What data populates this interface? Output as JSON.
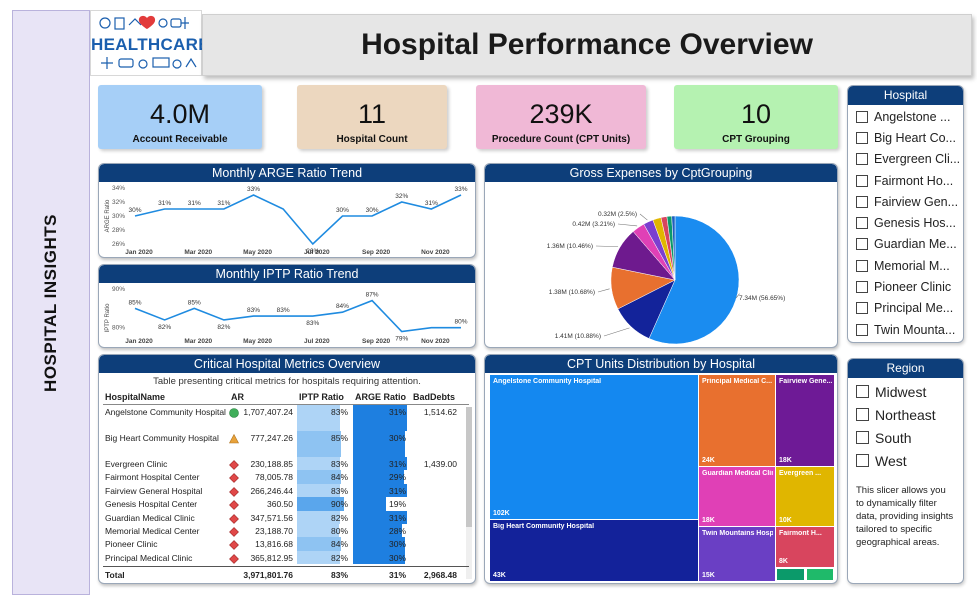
{
  "sidebar": {
    "label": "HOSPITAL INSIGHTS"
  },
  "logo": {
    "text": "HEALTHCARE"
  },
  "title": "Hospital Performance Overview",
  "kpis": [
    {
      "value": "4.0M",
      "label": "Account Receivable",
      "color": "#a6cff7"
    },
    {
      "value": "11",
      "label": "Hospital Count",
      "color": "#ecd7bf"
    },
    {
      "value": "239K",
      "label": "Procedure Count (CPT Units)",
      "color": "#f0b8d6"
    },
    {
      "value": "10",
      "label": "CPT Grouping",
      "color": "#b5f2b1"
    }
  ],
  "colors": {
    "header": "#0d3e7a",
    "line": "#1f8be0",
    "iptp_fill": "#a8d0f4",
    "arge_fill": "#1e7fe0"
  },
  "argeChart": {
    "title": "Monthly ARGE Ratio Trend",
    "ylabel": "ARGE Ratio",
    "yticks": [
      "34%",
      "32%",
      "30%",
      "28%",
      "26%"
    ],
    "xticks": [
      "Jan 2020",
      "Mar 2020",
      "May 2020",
      "Jul 2020",
      "Sep 2020",
      "Nov 2020"
    ]
  },
  "iptpChart": {
    "title": "Monthly IPTP Ratio Trend",
    "ylabel": "IPTP Ratio",
    "yticks": [
      "90%",
      "80%"
    ],
    "xticks": [
      "Jan 2020",
      "Mar 2020",
      "May 2020",
      "Jul 2020",
      "Sep 2020",
      "Nov 2020"
    ]
  },
  "pieChart": {
    "title": "Gross Expenses by CptGrouping"
  },
  "table": {
    "title": "Critical Hospital Metrics Overview",
    "subtitle": "Table presenting critical metrics for hospitals requiring attention.",
    "headers": [
      "HospitalName",
      "AR",
      "IPTP Ratio",
      "ARGE Ratio",
      "BadDebts"
    ],
    "rows": [
      {
        "name": "Angelstone Community Hospital",
        "ar": "1,707,407.24",
        "iptp": "83%",
        "arge": "31%",
        "bad": "1,514.62",
        "ind": "circle",
        "iptpv": 83,
        "argev": 31
      },
      {
        "name": "Big Heart Community Hospital",
        "ar": "777,247.26",
        "iptp": "85%",
        "arge": "30%",
        "bad": "",
        "ind": "triangle",
        "iptpv": 85,
        "argev": 30
      },
      {
        "name": "Evergreen Clinic",
        "ar": "230,188.85",
        "iptp": "83%",
        "arge": "31%",
        "bad": "1,439.00",
        "ind": "diamond",
        "iptpv": 83,
        "argev": 31
      },
      {
        "name": "Fairmont Hospital Center",
        "ar": "78,005.78",
        "iptp": "84%",
        "arge": "29%",
        "bad": "",
        "ind": "diamond",
        "iptpv": 84,
        "argev": 29
      },
      {
        "name": "Fairview General Hospital",
        "ar": "266,246.44",
        "iptp": "83%",
        "arge": "31%",
        "bad": "",
        "ind": "diamond",
        "iptpv": 83,
        "argev": 31
      },
      {
        "name": "Genesis Hospital Center",
        "ar": "360.50",
        "iptp": "90%",
        "arge": "19%",
        "bad": "",
        "ind": "diamond",
        "iptpv": 90,
        "argev": 19
      },
      {
        "name": "Guardian Medical Clinic",
        "ar": "347,571.56",
        "iptp": "82%",
        "arge": "31%",
        "bad": "",
        "ind": "diamond",
        "iptpv": 82,
        "argev": 31
      },
      {
        "name": "Memorial Medical Center",
        "ar": "23,188.70",
        "iptp": "80%",
        "arge": "28%",
        "bad": "",
        "ind": "diamond",
        "iptpv": 80,
        "argev": 28
      },
      {
        "name": "Pioneer Clinic",
        "ar": "13,816.68",
        "iptp": "84%",
        "arge": "30%",
        "bad": "",
        "ind": "diamond",
        "iptpv": 84,
        "argev": 30
      },
      {
        "name": "Principal Medical Clinic",
        "ar": "365,812.95",
        "iptp": "82%",
        "arge": "30%",
        "bad": "",
        "ind": "diamond",
        "iptpv": 82,
        "argev": 30
      }
    ],
    "total": {
      "name": "Total",
      "ar": "3,971,801.76",
      "iptp": "83%",
      "arge": "31%",
      "bad": "2,968.48"
    }
  },
  "treemap": {
    "title": "CPT Units Distribution by Hospital",
    "tiles": [
      {
        "name": "Angelstone Community Hospital",
        "value": "102K",
        "color": "#1488f0"
      },
      {
        "name": "Big Heart Community Hospital",
        "value": "43K",
        "color": "#13229a"
      },
      {
        "name": "Principal Medical C...",
        "value": "24K",
        "color": "#e8702f"
      },
      {
        "name": "Fairview Gene...",
        "value": "18K",
        "color": "#6e1a96"
      },
      {
        "name": "Guardian Medical Clinic",
        "value": "18K",
        "color": "#e040b6"
      },
      {
        "name": "Evergreen ...",
        "value": "10K",
        "color": "#e0b600"
      },
      {
        "name": "Twin Mountains Hosp...",
        "value": "15K",
        "color": "#6a3fc4"
      },
      {
        "name": "Fairmont H...",
        "value": "8K",
        "color": "#d8455e"
      }
    ]
  },
  "hospitalSlicer": {
    "title": "Hospital",
    "items": [
      "Angelstone ...",
      "Big Heart Co...",
      "Evergreen Cli...",
      "Fairmont Ho...",
      "Fairview Gen...",
      "Genesis Hos...",
      "Guardian Me...",
      "Memorial M...",
      "Pioneer Clinic",
      "Principal Me...",
      "Twin Mounta..."
    ]
  },
  "regionSlicer": {
    "title": "Region",
    "items": [
      "Midwest",
      "Northeast",
      "South",
      "West"
    ],
    "note": "This slicer allows you to dynamically filter data, providing insights tailored to specific geographical areas."
  },
  "chart_data": [
    {
      "type": "line",
      "title": "Monthly ARGE Ratio Trend",
      "ylabel": "ARGE Ratio",
      "x": [
        "Jan 2020",
        "Feb 2020",
        "Mar 2020",
        "Apr 2020",
        "May 2020",
        "Jun 2020",
        "Jul 2020",
        "Aug 2020",
        "Sep 2020",
        "Oct 2020",
        "Nov 2020",
        "Dec 2020"
      ],
      "values": [
        30,
        31,
        31,
        31,
        33,
        31,
        26,
        30,
        30,
        32,
        31,
        33
      ],
      "labels": [
        "30%",
        "31%",
        "31%",
        "31%",
        "33%",
        "",
        "26%",
        "30%",
        "30%",
        "32%",
        "31%",
        "33%"
      ],
      "ylim": [
        26,
        34
      ]
    },
    {
      "type": "line",
      "title": "Monthly IPTP Ratio Trend",
      "ylabel": "IPTP Ratio",
      "x": [
        "Jan 2020",
        "Feb 2020",
        "Mar 2020",
        "Apr 2020",
        "May 2020",
        "Jun 2020",
        "Jul 2020",
        "Aug 2020",
        "Sep 2020",
        "Oct 2020",
        "Nov 2020",
        "Dec 2020"
      ],
      "values": [
        85,
        82,
        85,
        82,
        83,
        83,
        83,
        84,
        87,
        79,
        80,
        80
      ],
      "labels": [
        "85%",
        "82%",
        "85%",
        "82%",
        "83%",
        "83%",
        "83%",
        "84%",
        "87%",
        "79%",
        "",
        "80%"
      ],
      "ylim": [
        75,
        90
      ]
    },
    {
      "type": "pie",
      "title": "Gross Expenses by CptGrouping",
      "slices": [
        {
          "value": 56.65,
          "label": "7.34M (56.65%)",
          "color": "#1a8cf0"
        },
        {
          "value": 10.88,
          "label": "1.41M (10.88%)",
          "color": "#13239a"
        },
        {
          "value": 10.68,
          "label": "1.38M (10.68%)",
          "color": "#e8702f"
        },
        {
          "value": 10.46,
          "label": "1.36M (10.46%)",
          "color": "#6e1a8e"
        },
        {
          "value": 3.21,
          "label": "0.42M (3.21%)",
          "color": "#e040b6"
        },
        {
          "value": 2.5,
          "label": "0.32M (2.5%)",
          "color": "#7b3fd0"
        },
        {
          "value": 2.1,
          "label": "",
          "color": "#e0b600"
        },
        {
          "value": 1.5,
          "label": "",
          "color": "#d8455e"
        },
        {
          "value": 1.2,
          "label": "",
          "color": "#0b9a6a"
        },
        {
          "value": 0.82,
          "label": "",
          "color": "#1e5fbf"
        }
      ]
    }
  ]
}
